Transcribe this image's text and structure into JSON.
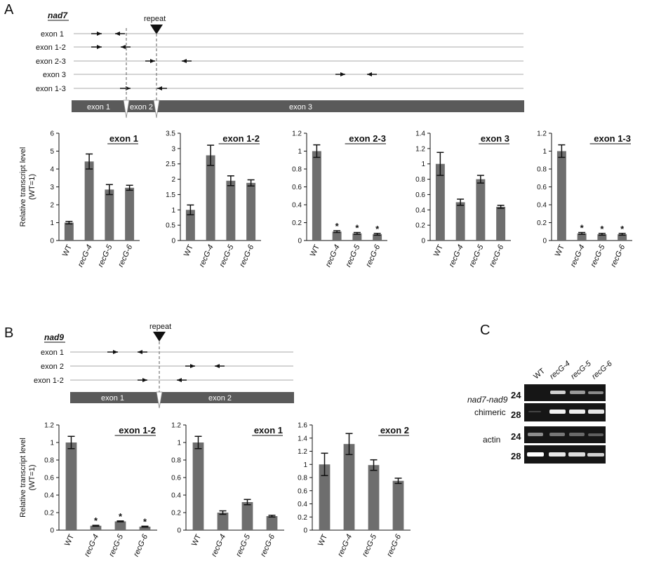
{
  "panels": {
    "A": {
      "letter": "A",
      "gene": "nad7",
      "repeat_label": "repeat",
      "amplicons": [
        "exon 1",
        "exon 1-2",
        "exon 2-3",
        "exon 3",
        "exon 1-3"
      ],
      "exon_bar": [
        "exon 1",
        "exon 2",
        "exon 3"
      ]
    },
    "B": {
      "letter": "B",
      "gene": "nad9",
      "repeat_label": "repeat",
      "amplicons": [
        "exon 1",
        "exon 2",
        "exon 1-2"
      ],
      "exon_bar": [
        "exon 1",
        "exon 2"
      ]
    },
    "C": {
      "letter": "C",
      "lanes": [
        "WT",
        "recG-4",
        "recG-5",
        "recG-6"
      ],
      "row_labels": [
        "nad7-nad9",
        "chimeric",
        "actin"
      ],
      "cycle_labels": [
        "24",
        "28",
        "24",
        "28"
      ]
    }
  },
  "colors": {
    "bar": "#6e6e6e",
    "exon_bar": "#5a5a5a",
    "gel_bg": "#161616",
    "band": "#ffffff"
  },
  "chart_data": [
    {
      "type": "bar",
      "panel": "A",
      "title": "exon 1",
      "categories": [
        "WT",
        "recG-4",
        "recG-5",
        "recG-6"
      ],
      "values": [
        1.0,
        4.42,
        2.85,
        2.95
      ],
      "errors": [
        0.07,
        0.42,
        0.28,
        0.14
      ],
      "significant": [
        false,
        false,
        false,
        false
      ],
      "ylim": [
        0,
        6
      ],
      "yticks": [
        0,
        1,
        2,
        3,
        4,
        5,
        6
      ],
      "ytick_labels": [
        "0",
        "1",
        "2",
        "3",
        "4",
        "5",
        "6"
      ],
      "ylabel": "Relative transcript level",
      "ylabel2": "(WT=1)"
    },
    {
      "type": "bar",
      "panel": "A",
      "title": "exon 1-2",
      "categories": [
        "WT",
        "recG-4",
        "recG-5",
        "recG-6"
      ],
      "values": [
        1.0,
        2.78,
        1.95,
        1.88
      ],
      "errors": [
        0.16,
        0.33,
        0.16,
        0.1
      ],
      "significant": [
        false,
        false,
        false,
        false
      ],
      "ylim": [
        0,
        3.5
      ],
      "yticks": [
        0,
        0.5,
        1,
        1.5,
        2,
        2.5,
        3,
        3.5
      ],
      "ytick_labels": [
        "0",
        "0.5",
        "1",
        "1.5",
        "2",
        "2.5",
        "3",
        "3.5"
      ]
    },
    {
      "type": "bar",
      "panel": "A",
      "title": "exon 2-3",
      "categories": [
        "WT",
        "recG-4",
        "recG-5",
        "recG-6"
      ],
      "values": [
        1.0,
        0.1,
        0.08,
        0.07
      ],
      "errors": [
        0.07,
        0.01,
        0.01,
        0.01
      ],
      "significant": [
        false,
        true,
        true,
        true
      ],
      "ylim": [
        0,
        1.2
      ],
      "yticks": [
        0,
        0.2,
        0.4,
        0.6,
        0.8,
        1,
        1.2
      ],
      "ytick_labels": [
        "0",
        "0.2",
        "0.4",
        "0.6",
        "0.8",
        "1",
        "1.2"
      ]
    },
    {
      "type": "bar",
      "panel": "A",
      "title": "exon 3",
      "categories": [
        "WT",
        "recG-4",
        "recG-5",
        "recG-6"
      ],
      "values": [
        1.0,
        0.5,
        0.8,
        0.44
      ],
      "errors": [
        0.15,
        0.04,
        0.05,
        0.02
      ],
      "significant": [
        false,
        false,
        false,
        false
      ],
      "ylim": [
        0,
        1.4
      ],
      "yticks": [
        0,
        0.2,
        0.4,
        0.6,
        0.8,
        1,
        1.2,
        1.4
      ],
      "ytick_labels": [
        "0",
        "0.2",
        "0.4",
        "0.6",
        "0.8",
        "1",
        "1.2",
        "1.4"
      ]
    },
    {
      "type": "bar",
      "panel": "A",
      "title": "exon 1-3",
      "categories": [
        "WT",
        "recG-4",
        "recG-5",
        "recG-6"
      ],
      "values": [
        1.0,
        0.08,
        0.07,
        0.07
      ],
      "errors": [
        0.07,
        0.01,
        0.01,
        0.01
      ],
      "significant": [
        false,
        true,
        true,
        true
      ],
      "ylim": [
        0,
        1.2
      ],
      "yticks": [
        0,
        0.2,
        0.4,
        0.6,
        0.8,
        1,
        1.2
      ],
      "ytick_labels": [
        "0",
        "0.2",
        "0.4",
        "0.6",
        "0.8",
        "1",
        "1.2"
      ]
    },
    {
      "type": "bar",
      "panel": "B",
      "title": "exon 1-2",
      "categories": [
        "WT",
        "recG-4",
        "recG-5",
        "recG-6"
      ],
      "values": [
        1.0,
        0.05,
        0.1,
        0.04
      ],
      "errors": [
        0.07,
        0.005,
        0.005,
        0.005
      ],
      "significant": [
        false,
        true,
        true,
        true
      ],
      "ylim": [
        0,
        1.2
      ],
      "yticks": [
        0,
        0.2,
        0.4,
        0.6,
        0.8,
        1,
        1.2
      ],
      "ytick_labels": [
        "0",
        "0.2",
        "0.4",
        "0.6",
        "0.8",
        "1",
        "1.2"
      ],
      "ylabel": "Relative transcript level",
      "ylabel2": "(WT=1)"
    },
    {
      "type": "bar",
      "panel": "B",
      "title": "exon 1",
      "categories": [
        "WT",
        "recG-4",
        "recG-5",
        "recG-6"
      ],
      "values": [
        1.0,
        0.2,
        0.32,
        0.16
      ],
      "errors": [
        0.07,
        0.02,
        0.03,
        0.01
      ],
      "significant": [
        false,
        false,
        false,
        false
      ],
      "ylim": [
        0,
        1.2
      ],
      "yticks": [
        0,
        0.2,
        0.4,
        0.6,
        0.8,
        1,
        1.2
      ],
      "ytick_labels": [
        "0",
        "0.2",
        "0.4",
        "0.6",
        "0.8",
        "1",
        "1.2"
      ]
    },
    {
      "type": "bar",
      "panel": "B",
      "title": "exon 2",
      "categories": [
        "WT",
        "recG-4",
        "recG-5",
        "recG-6"
      ],
      "values": [
        1.0,
        1.31,
        0.99,
        0.75
      ],
      "errors": [
        0.17,
        0.16,
        0.08,
        0.04
      ],
      "significant": [
        false,
        false,
        false,
        false
      ],
      "ylim": [
        0,
        1.6
      ],
      "yticks": [
        0,
        0.2,
        0.4,
        0.6,
        0.8,
        1,
        1.2,
        1.4,
        1.6
      ],
      "ytick_labels": [
        "0",
        "0.2",
        "0.4",
        "0.6",
        "0.8",
        "1",
        "1.2",
        "1.4",
        "1.6"
      ]
    }
  ]
}
